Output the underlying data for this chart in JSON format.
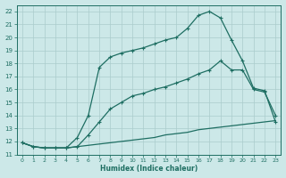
{
  "xlabel": "Humidex (Indice chaleur)",
  "xlim": [
    -0.5,
    23.5
  ],
  "ylim": [
    11,
    22.5
  ],
  "yticks": [
    11,
    12,
    13,
    14,
    15,
    16,
    17,
    18,
    19,
    20,
    21,
    22
  ],
  "xticks": [
    0,
    1,
    2,
    3,
    4,
    5,
    6,
    7,
    8,
    9,
    10,
    11,
    12,
    13,
    14,
    15,
    16,
    17,
    18,
    19,
    20,
    21,
    22,
    23
  ],
  "bg_color": "#cce8e8",
  "grid_color": "#aacccc",
  "line_color": "#1e6e62",
  "curve1_x": [
    0,
    1,
    2,
    3,
    4,
    5,
    6,
    7,
    8,
    9,
    10,
    11,
    12,
    13,
    14,
    15,
    16,
    17,
    18,
    19,
    20,
    21,
    22,
    23
  ],
  "curve1_y": [
    11.9,
    11.6,
    11.5,
    11.5,
    11.5,
    11.6,
    11.7,
    11.8,
    11.9,
    12.0,
    12.1,
    12.2,
    12.3,
    12.5,
    12.6,
    12.7,
    12.9,
    13.0,
    13.1,
    13.2,
    13.3,
    13.4,
    13.5,
    13.6
  ],
  "curve2_x": [
    0,
    1,
    2,
    3,
    4,
    5,
    6,
    7,
    8,
    9,
    10,
    11,
    12,
    13,
    14,
    15,
    16,
    17,
    18,
    19,
    20,
    21,
    22,
    23
  ],
  "curve2_y": [
    11.9,
    11.6,
    11.5,
    11.5,
    11.5,
    11.6,
    12.5,
    13.5,
    14.5,
    15.0,
    15.5,
    15.7,
    16.0,
    16.2,
    16.5,
    16.8,
    17.2,
    17.5,
    18.2,
    17.5,
    17.5,
    16.0,
    15.8,
    14.0
  ],
  "curve3_x": [
    0,
    1,
    2,
    3,
    4,
    5,
    6,
    7,
    8,
    9,
    10,
    11,
    12,
    13,
    14,
    15,
    16,
    17,
    18,
    19,
    20,
    21,
    22,
    23
  ],
  "curve3_y": [
    11.9,
    11.6,
    11.5,
    11.5,
    11.5,
    12.3,
    14.0,
    17.7,
    18.5,
    18.8,
    19.0,
    19.2,
    19.5,
    19.8,
    20.0,
    20.7,
    21.7,
    22.0,
    21.5,
    19.8,
    18.2,
    16.1,
    15.9,
    13.5
  ],
  "curve2_markers": [
    5,
    6,
    7,
    8,
    9,
    10,
    11,
    12,
    13,
    14,
    15,
    16,
    17,
    18,
    19,
    20,
    21,
    22,
    23
  ],
  "curve3_markers": [
    5,
    6,
    7,
    8,
    9,
    10,
    11,
    12,
    13,
    14,
    15,
    16,
    17,
    18,
    19,
    20,
    21,
    22,
    23
  ]
}
